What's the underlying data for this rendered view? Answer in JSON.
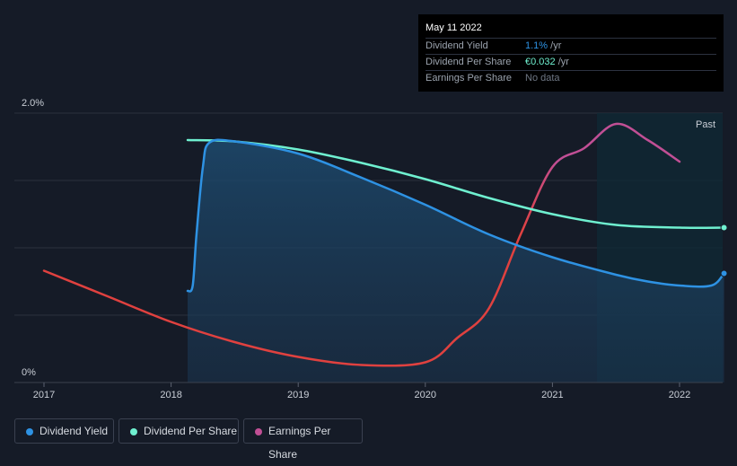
{
  "tooltip": {
    "date": "May 11 2022",
    "rows": [
      {
        "label": "Dividend Yield",
        "value": "1.1%",
        "unit": " /yr"
      },
      {
        "label": "Dividend Per Share",
        "value": "€0.032",
        "unit": " /yr"
      },
      {
        "label": "Earnings Per Share",
        "value": "No data",
        "unit": ""
      }
    ]
  },
  "colors": {
    "dividend_yield": "#2e92e3",
    "dividend_per_share": "#6ff0d0",
    "earnings_per_share_past": "#e0413f",
    "earnings_per_share_recent": "#c14f95",
    "background": "#151b27"
  },
  "chart_data": {
    "type": "line",
    "title": "",
    "xlabel": "",
    "ylabel": "",
    "x_ticks": [
      "2017",
      "2018",
      "2019",
      "2020",
      "2021",
      "2022"
    ],
    "y_ticks": [
      "0%",
      "2.0%"
    ],
    "ylim": [
      0,
      2.0
    ],
    "xlim": [
      2016.77,
      2022.35
    ],
    "past_region_label": "Past",
    "past_region_start": 2021.35,
    "grid": true,
    "legend": {
      "placement": "bottom-left",
      "entries": [
        "Dividend Yield",
        "Dividend Per Share",
        "Earnings Per Share"
      ]
    },
    "series": [
      {
        "name": "Dividend Yield",
        "unit": "%",
        "filled": true,
        "points": [
          [
            2018.13,
            0.68
          ],
          [
            2018.17,
            0.72
          ],
          [
            2018.2,
            1.1
          ],
          [
            2018.25,
            1.6
          ],
          [
            2018.3,
            1.78
          ],
          [
            2018.5,
            1.79
          ],
          [
            2019.0,
            1.7
          ],
          [
            2019.5,
            1.52
          ],
          [
            2020.0,
            1.32
          ],
          [
            2020.5,
            1.1
          ],
          [
            2021.0,
            0.93
          ],
          [
            2021.5,
            0.8
          ],
          [
            2021.75,
            0.75
          ],
          [
            2022.0,
            0.72
          ],
          [
            2022.25,
            0.72
          ],
          [
            2022.35,
            0.81
          ]
        ]
      },
      {
        "name": "Dividend Per Share",
        "unit": "€",
        "points": [
          [
            2018.13,
            1.8
          ],
          [
            2018.5,
            1.79
          ],
          [
            2019.0,
            1.73
          ],
          [
            2019.5,
            1.63
          ],
          [
            2020.0,
            1.51
          ],
          [
            2020.5,
            1.37
          ],
          [
            2021.0,
            1.25
          ],
          [
            2021.5,
            1.17
          ],
          [
            2022.0,
            1.15
          ],
          [
            2022.35,
            1.15
          ]
        ]
      },
      {
        "name": "Earnings Per Share",
        "unit": "€",
        "points": [
          [
            2017.0,
            0.83
          ],
          [
            2017.5,
            0.64
          ],
          [
            2018.0,
            0.45
          ],
          [
            2018.5,
            0.3
          ],
          [
            2019.0,
            0.19
          ],
          [
            2019.5,
            0.13
          ],
          [
            2020.0,
            0.15
          ],
          [
            2020.25,
            0.33
          ],
          [
            2020.5,
            0.55
          ],
          [
            2020.75,
            1.1
          ],
          [
            2021.0,
            1.6
          ],
          [
            2021.25,
            1.74
          ],
          [
            2021.5,
            1.92
          ],
          [
            2021.75,
            1.8
          ],
          [
            2022.0,
            1.64
          ]
        ]
      }
    ]
  }
}
